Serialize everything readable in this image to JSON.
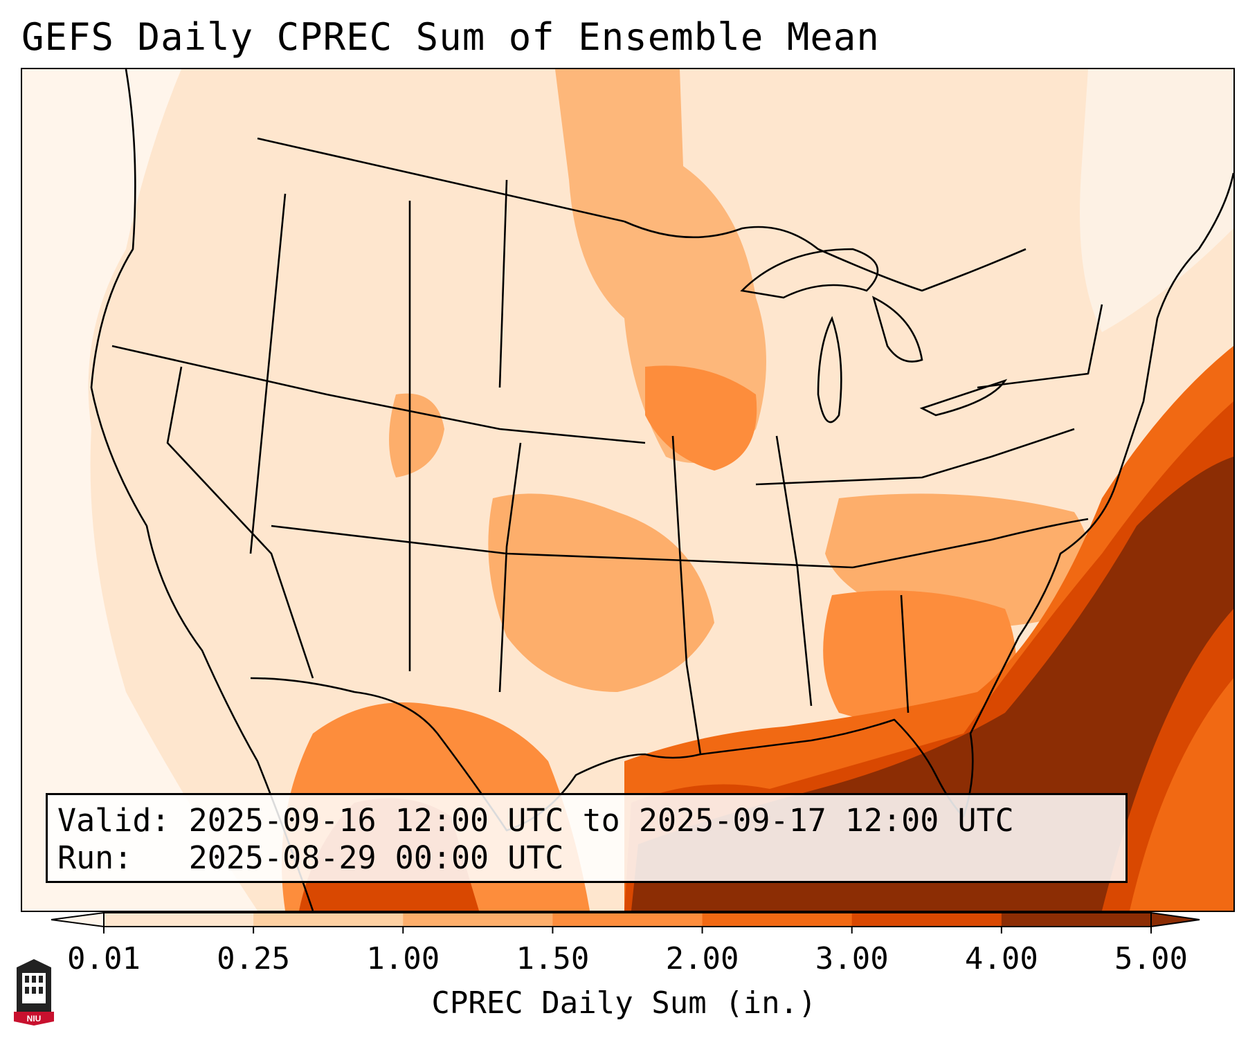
{
  "title": "GEFS Daily CPREC Sum of Ensemble Mean",
  "info": {
    "valid_label": "Valid:",
    "valid_value": "2025-09-16 12:00 UTC to 2025-09-17 12:00 UTC",
    "run_label": "Run:",
    "run_value": "2025-08-29 00:00 UTC"
  },
  "colorbar": {
    "label": "CPREC Daily Sum (in.)",
    "ticks": [
      "0.01",
      "0.25",
      "1.00",
      "1.50",
      "2.00",
      "3.00",
      "4.00",
      "5.00"
    ],
    "colors": [
      "#fff5eb",
      "#fee6ce",
      "#fdd0a2",
      "#fdae6b",
      "#fd8d3c",
      "#f16913",
      "#d94801",
      "#8c2d04"
    ],
    "extend": "both"
  },
  "logo": {
    "text": "NIU",
    "icon": "university-tower-icon"
  },
  "map": {
    "region": "Contiguous United States",
    "projection": "lambert-conformal",
    "borders": "state and national boundaries"
  }
}
